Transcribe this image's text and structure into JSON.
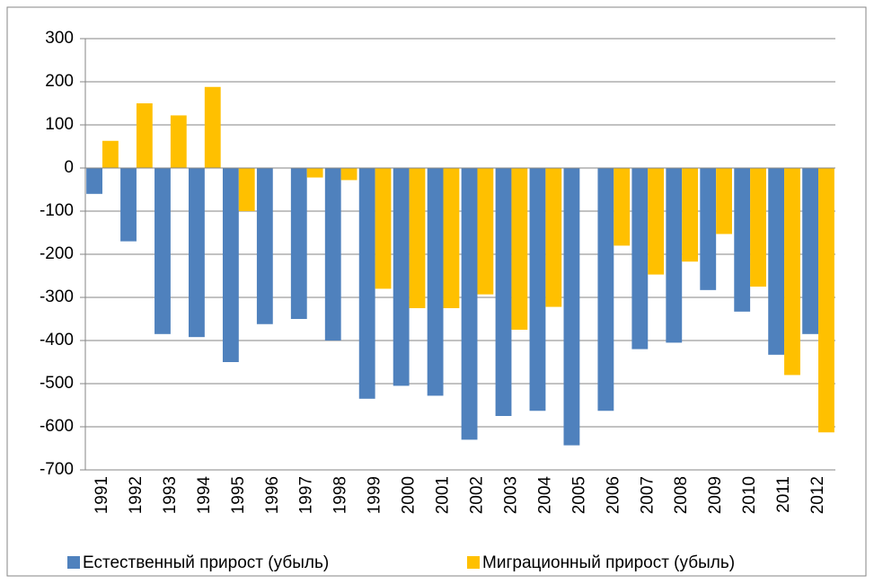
{
  "chart_data": {
    "type": "bar",
    "categories": [
      "1991",
      "1992",
      "1993",
      "1994",
      "1995",
      "1996",
      "1997",
      "1998",
      "1999",
      "2000",
      "2001",
      "2002",
      "2003",
      "2004",
      "2005",
      "2006",
      "2007",
      "2008",
      "2009",
      "2010",
      "2011",
      "2012"
    ],
    "series": [
      {
        "name": "Естественный прирост (убыль)",
        "color": "#4f81bd",
        "values": [
          -60,
          -170,
          -385,
          -392,
          -450,
          -362,
          -350,
          -400,
          -535,
          -505,
          -528,
          -630,
          -575,
          -563,
          -643,
          -563,
          -420,
          -405,
          -283,
          -333,
          -433,
          -385
        ]
      },
      {
        "name": "Миграционный прирост (убыль)",
        "color": "#ffc000",
        "values": [
          63,
          150,
          122,
          188,
          -100,
          0,
          -22,
          -28,
          -280,
          -325,
          -325,
          -293,
          -375,
          -322,
          0,
          -180,
          -247,
          -217,
          -153,
          -275,
          -480,
          -613
        ]
      }
    ],
    "ylim": [
      -700,
      300
    ],
    "yticks": [
      -700,
      -600,
      -500,
      -400,
      -300,
      -200,
      -100,
      0,
      100,
      200,
      300
    ],
    "grid": true
  }
}
